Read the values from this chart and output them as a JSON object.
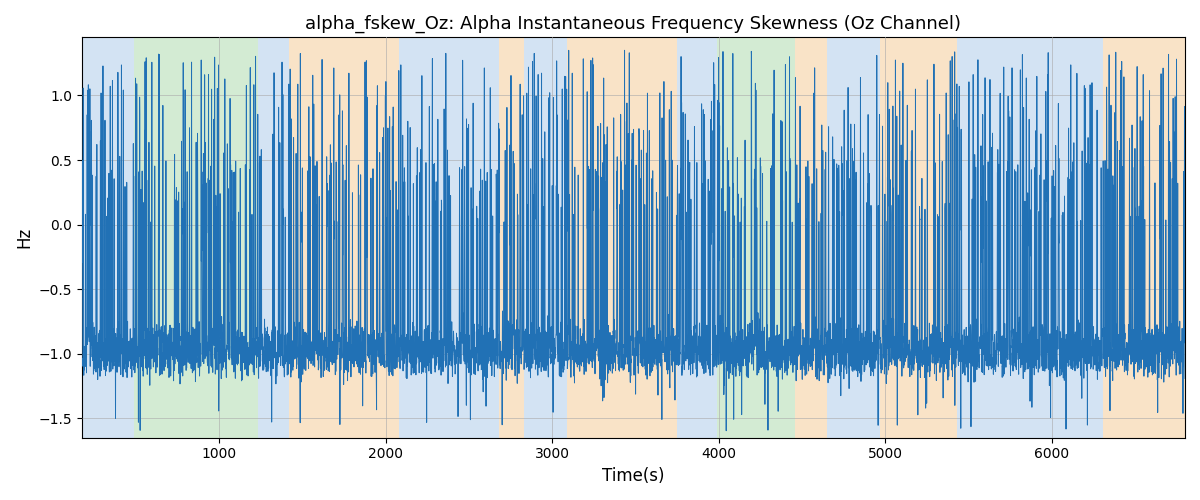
{
  "title": "alpha_fskew_Oz: Alpha Instantaneous Frequency Skewness (Oz Channel)",
  "xlabel": "Time(s)",
  "ylabel": "Hz",
  "xlim": [
    175,
    6800
  ],
  "ylim": [
    -1.65,
    1.45
  ],
  "line_color": "#2171b5",
  "line_width": 0.7,
  "background_bands": [
    {
      "xmin": 175,
      "xmax": 490,
      "color": "#a8c8e8",
      "alpha": 0.5
    },
    {
      "xmin": 490,
      "xmax": 1230,
      "color": "#a8d8a8",
      "alpha": 0.5
    },
    {
      "xmin": 1230,
      "xmax": 1420,
      "color": "#a8c8e8",
      "alpha": 0.5
    },
    {
      "xmin": 1420,
      "xmax": 2080,
      "color": "#f5c890",
      "alpha": 0.5
    },
    {
      "xmin": 2080,
      "xmax": 2680,
      "color": "#a8c8e8",
      "alpha": 0.5
    },
    {
      "xmin": 2680,
      "xmax": 2830,
      "color": "#f5c890",
      "alpha": 0.5
    },
    {
      "xmin": 2830,
      "xmax": 3090,
      "color": "#a8c8e8",
      "alpha": 0.5
    },
    {
      "xmin": 3090,
      "xmax": 3750,
      "color": "#f5c890",
      "alpha": 0.5
    },
    {
      "xmin": 3750,
      "xmax": 3990,
      "color": "#a8c8e8",
      "alpha": 0.5
    },
    {
      "xmin": 3990,
      "xmax": 4460,
      "color": "#a8d8a8",
      "alpha": 0.5
    },
    {
      "xmin": 4460,
      "xmax": 4650,
      "color": "#f5c890",
      "alpha": 0.5
    },
    {
      "xmin": 4650,
      "xmax": 4970,
      "color": "#a8c8e8",
      "alpha": 0.5
    },
    {
      "xmin": 4970,
      "xmax": 5430,
      "color": "#f5c890",
      "alpha": 0.5
    },
    {
      "xmin": 5430,
      "xmax": 5900,
      "color": "#a8c8e8",
      "alpha": 0.5
    },
    {
      "xmin": 5900,
      "xmax": 6080,
      "color": "#a8c8e8",
      "alpha": 0.5
    },
    {
      "xmin": 6080,
      "xmax": 6310,
      "color": "#a8c8e8",
      "alpha": 0.5
    },
    {
      "xmin": 6310,
      "xmax": 6800,
      "color": "#f5c890",
      "alpha": 0.5
    }
  ],
  "yticks": [
    -1.5,
    -1.0,
    -0.5,
    0.0,
    0.5,
    1.0
  ],
  "xticks": [
    1000,
    2000,
    3000,
    4000,
    5000,
    6000
  ],
  "grid_color": "#aaaaaa",
  "grid_alpha": 0.6,
  "title_fontsize": 13
}
